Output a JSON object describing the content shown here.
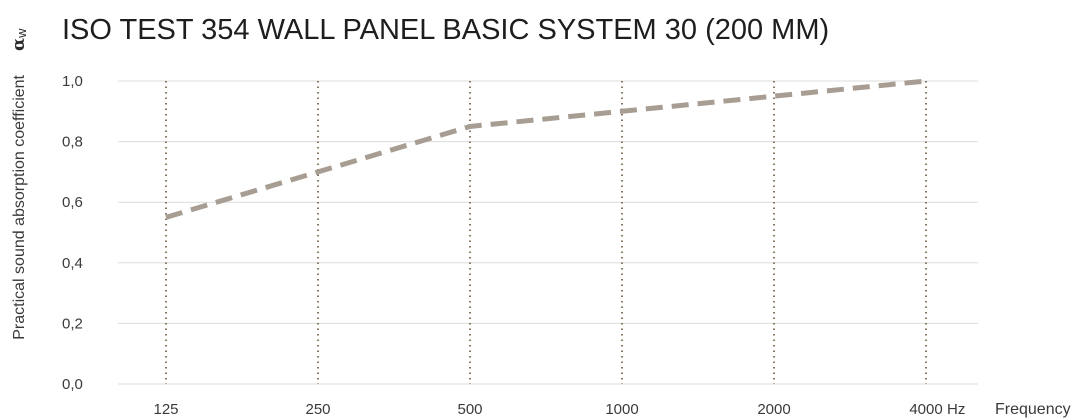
{
  "chart_data": {
    "type": "line",
    "title": "ISO TEST 354 WALL PANEL BASIC SYSTEM 30 (200 MM)",
    "ylabel": "Practical sound absorption coefficient",
    "ylabel_symbol": "α",
    "ylabel_symbol_sub": "w",
    "xlabel": "Frequency",
    "x_unit": "Hz",
    "categories": [
      "125",
      "250",
      "500",
      "1000",
      "2000",
      "4000"
    ],
    "values": [
      0.55,
      0.7,
      0.85,
      0.9,
      0.95,
      1.0
    ],
    "ylim": [
      0,
      1.0
    ],
    "yticks": [
      {
        "value": 0.0,
        "label": "0,0"
      },
      {
        "value": 0.2,
        "label": "0,2"
      },
      {
        "value": 0.4,
        "label": "0,4"
      },
      {
        "value": 0.6,
        "label": "0,6"
      },
      {
        "value": 0.8,
        "label": "0,8"
      },
      {
        "value": 1.0,
        "label": "1,0"
      }
    ],
    "grid": "horizontal solid lines, vertical dotted lines at categories",
    "line_style": "dashed",
    "colors": {
      "series": "#a89d92",
      "vertical_grid": "#8a7460",
      "horizontal_grid": "#dcdcdc"
    }
  }
}
